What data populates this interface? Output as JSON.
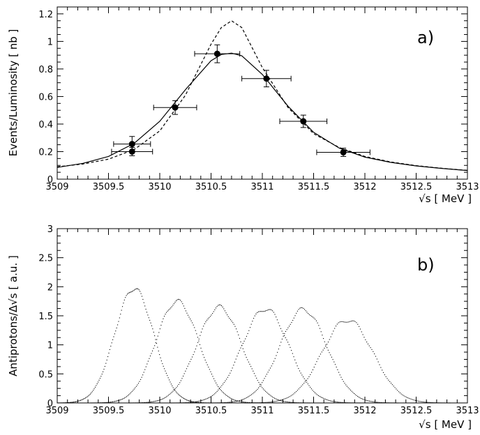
{
  "chart_data": [
    {
      "type": "scatter",
      "panel_label": "a)",
      "ylabel": "Events/Luminosity [ nb ]",
      "xlabel": "√s   [ MeV ]",
      "xlim": [
        3509,
        3513
      ],
      "ylim": [
        0,
        1.25
      ],
      "xticks": [
        "3509",
        "3509.5",
        "3510",
        "3510.5",
        "3511",
        "3511.5",
        "3512",
        "3512.5",
        "3513"
      ],
      "yticks": [
        "0",
        "0.2",
        "0.4",
        "0.6",
        "0.8",
        "1",
        "1.2"
      ],
      "grid": false,
      "series": [
        {
          "kind": "points_with_errors",
          "points": [
            {
              "x": 3509.73,
              "y": 0.255,
              "xerr": 0.18,
              "yerr": 0.055
            },
            {
              "x": 3509.73,
              "y": 0.2,
              "xerr": 0.2,
              "yerr": 0.03
            },
            {
              "x": 3510.15,
              "y": 0.52,
              "xerr": 0.21,
              "yerr": 0.05
            },
            {
              "x": 3510.56,
              "y": 0.91,
              "xerr": 0.22,
              "yerr": 0.065
            },
            {
              "x": 3511.04,
              "y": 0.73,
              "xerr": 0.24,
              "yerr": 0.06
            },
            {
              "x": 3511.4,
              "y": 0.42,
              "xerr": 0.23,
              "yerr": 0.045
            },
            {
              "x": 3511.79,
              "y": 0.195,
              "xerr": 0.26,
              "yerr": 0.03
            }
          ]
        },
        {
          "kind": "line",
          "style": "solid",
          "x": [
            3509.0,
            3509.25,
            3509.5,
            3509.75,
            3510.0,
            3510.25,
            3510.5,
            3510.6,
            3510.7,
            3510.8,
            3511.0,
            3511.25,
            3511.5,
            3511.75,
            3512.0,
            3512.25,
            3512.5,
            3512.75,
            3513.0
          ],
          "y": [
            0.085,
            0.115,
            0.165,
            0.26,
            0.42,
            0.65,
            0.86,
            0.905,
            0.915,
            0.895,
            0.76,
            0.53,
            0.34,
            0.225,
            0.16,
            0.122,
            0.096,
            0.078,
            0.063
          ]
        },
        {
          "kind": "line",
          "style": "dashed",
          "x": [
            3509.0,
            3509.25,
            3509.5,
            3509.75,
            3510.0,
            3510.25,
            3510.5,
            3510.6,
            3510.7,
            3510.8,
            3511.0,
            3511.25,
            3511.5,
            3511.75,
            3512.0,
            3512.25,
            3512.5,
            3512.75,
            3513.0
          ],
          "y": [
            0.09,
            0.11,
            0.145,
            0.215,
            0.35,
            0.61,
            0.98,
            1.1,
            1.15,
            1.1,
            0.81,
            0.52,
            0.33,
            0.23,
            0.165,
            0.125,
            0.098,
            0.079,
            0.064
          ]
        }
      ]
    },
    {
      "type": "line",
      "panel_label": "b)",
      "ylabel": "Antiprotons/Δ√s  [ a.u. ]",
      "xlabel": "√s   [ MeV ]",
      "xlim": [
        3509,
        3513
      ],
      "ylim": [
        0,
        3
      ],
      "xticks": [
        "3509",
        "3509.5",
        "3510",
        "3510.5",
        "3511",
        "3511.5",
        "3512",
        "3512.5",
        "3513"
      ],
      "yticks": [
        "0",
        "0.5",
        "1",
        "1.5",
        "2",
        "2.5",
        "3"
      ],
      "grid": false,
      "series": [
        {
          "kind": "peak",
          "center": 3509.75,
          "peak": 1.97,
          "sigma": 0.19
        },
        {
          "kind": "peak",
          "center": 3510.17,
          "peak": 1.75,
          "sigma": 0.21
        },
        {
          "kind": "peak",
          "center": 3510.58,
          "peak": 1.65,
          "sigma": 0.22
        },
        {
          "kind": "peak",
          "center": 3511.03,
          "peak": 1.62,
          "sigma": 0.23
        },
        {
          "kind": "peak",
          "center": 3511.4,
          "peak": 1.61,
          "sigma": 0.23
        },
        {
          "kind": "peak",
          "center": 3511.83,
          "peak": 1.43,
          "sigma": 0.25
        }
      ]
    }
  ]
}
